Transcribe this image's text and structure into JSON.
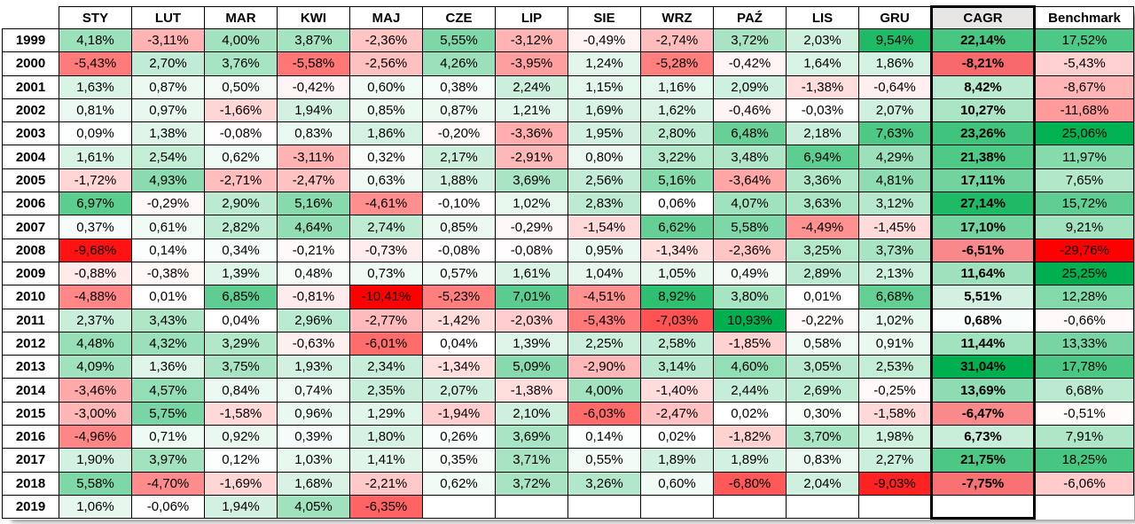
{
  "table_name": "monthly-returns-heatmap",
  "corner_label": "",
  "styles": {
    "cagr_header_bg": "#E7E6E4",
    "month_scale": {
      "min": -10.41,
      "max": 10.93,
      "neg": "#FF0000",
      "pos": "#00B050",
      "mid": "#FFFFFF"
    },
    "cagr_scale": {
      "min": -8.21,
      "max": 31.04,
      "neg": "#F8696B",
      "pos": "#00B050",
      "mid": "#FFFFFF"
    },
    "benchmark_scale": {
      "min": -29.76,
      "max": 25.25,
      "neg": "#FF0000",
      "pos": "#00B050",
      "mid": "#FFFFFF"
    }
  },
  "chart_data": {
    "type": "heatmap",
    "title": "",
    "number_format": "comma-decimal-percent",
    "month_columns": [
      "STY",
      "LUT",
      "MAR",
      "KWI",
      "MAJ",
      "CZE",
      "LIP",
      "SIE",
      "WRZ",
      "PAŹ",
      "LIS",
      "GRU"
    ],
    "summary_columns": [
      "CAGR",
      "Benchmark"
    ],
    "rows": [
      {
        "year": "1999",
        "values": [
          4.18,
          -3.11,
          4.0,
          3.87,
          -2.36,
          5.55,
          -3.12,
          -0.49,
          -2.74,
          3.72,
          2.03,
          9.54
        ],
        "cagr": 22.14,
        "benchmark": 17.52
      },
      {
        "year": "2000",
        "values": [
          -5.43,
          2.7,
          3.76,
          -5.58,
          -2.56,
          4.26,
          -3.95,
          1.24,
          -5.28,
          -0.42,
          1.64,
          1.86
        ],
        "cagr": -8.21,
        "benchmark": -5.43
      },
      {
        "year": "2001",
        "values": [
          1.63,
          0.87,
          0.5,
          -0.42,
          0.6,
          0.38,
          2.24,
          1.15,
          1.16,
          2.09,
          -1.38,
          -0.64
        ],
        "cagr": 8.42,
        "benchmark": -8.67
      },
      {
        "year": "2002",
        "values": [
          0.81,
          0.97,
          -1.66,
          1.94,
          0.85,
          0.87,
          1.21,
          1.69,
          1.62,
          -0.46,
          -0.03,
          2.07
        ],
        "cagr": 10.27,
        "benchmark": -11.68
      },
      {
        "year": "2003",
        "values": [
          0.09,
          1.38,
          -0.08,
          0.83,
          1.86,
          -0.2,
          -3.36,
          1.95,
          2.8,
          6.48,
          2.18,
          7.63
        ],
        "cagr": 23.26,
        "benchmark": 25.06
      },
      {
        "year": "2004",
        "values": [
          1.61,
          2.54,
          0.62,
          -3.11,
          0.32,
          2.17,
          -2.91,
          0.8,
          3.22,
          3.48,
          6.94,
          4.29
        ],
        "cagr": 21.38,
        "benchmark": 11.97
      },
      {
        "year": "2005",
        "values": [
          -1.72,
          4.93,
          -2.71,
          -2.47,
          0.63,
          1.88,
          3.69,
          2.56,
          5.16,
          -3.64,
          3.36,
          4.81
        ],
        "cagr": 17.11,
        "benchmark": 7.65
      },
      {
        "year": "2006",
        "values": [
          6.97,
          -0.29,
          2.9,
          5.16,
          -4.61,
          -0.1,
          1.02,
          2.83,
          0.06,
          4.07,
          3.63,
          3.12
        ],
        "cagr": 27.14,
        "benchmark": 15.72
      },
      {
        "year": "2007",
        "values": [
          0.37,
          0.61,
          2.82,
          4.64,
          2.74,
          0.85,
          -0.29,
          -1.54,
          6.62,
          5.58,
          -4.49,
          -1.45
        ],
        "cagr": 17.1,
        "benchmark": 9.21
      },
      {
        "year": "2008",
        "values": [
          -9.68,
          0.14,
          0.34,
          -0.21,
          -0.73,
          -0.08,
          -0.08,
          0.95,
          -1.34,
          -2.36,
          3.25,
          3.73
        ],
        "cagr": -6.51,
        "benchmark": -29.76
      },
      {
        "year": "2009",
        "values": [
          -0.88,
          -0.38,
          1.39,
          0.48,
          0.73,
          0.57,
          1.61,
          1.04,
          1.05,
          0.49,
          2.89,
          2.13
        ],
        "cagr": 11.64,
        "benchmark": 25.25
      },
      {
        "year": "2010",
        "values": [
          -4.88,
          0.01,
          6.85,
          -0.81,
          -10.41,
          -5.23,
          7.01,
          -4.51,
          8.92,
          3.8,
          0.01,
          6.68
        ],
        "cagr": 5.51,
        "benchmark": 12.28
      },
      {
        "year": "2011",
        "values": [
          2.37,
          3.43,
          0.04,
          2.96,
          -2.77,
          -1.42,
          -2.03,
          -5.43,
          -7.03,
          10.93,
          -0.22,
          1.02
        ],
        "cagr": 0.68,
        "benchmark": -0.66
      },
      {
        "year": "2012",
        "values": [
          4.48,
          4.32,
          3.29,
          -0.63,
          -6.01,
          0.04,
          1.39,
          2.25,
          2.58,
          -1.85,
          0.58,
          0.91
        ],
        "cagr": 11.44,
        "benchmark": 13.33
      },
      {
        "year": "2013",
        "values": [
          4.09,
          1.36,
          3.75,
          1.93,
          2.34,
          -1.34,
          5.09,
          -2.9,
          3.14,
          4.6,
          3.05,
          2.53
        ],
        "cagr": 31.04,
        "benchmark": 17.78
      },
      {
        "year": "2014",
        "values": [
          -3.46,
          4.57,
          0.84,
          0.74,
          2.35,
          2.07,
          -1.38,
          4.0,
          -1.4,
          2.44,
          2.69,
          -0.25
        ],
        "cagr": 13.69,
        "benchmark": 6.68
      },
      {
        "year": "2015",
        "values": [
          -3.0,
          5.75,
          -1.58,
          0.96,
          1.29,
          -1.94,
          2.1,
          -6.03,
          -2.47,
          0.02,
          0.3,
          -1.58
        ],
        "cagr": -6.47,
        "benchmark": -0.51
      },
      {
        "year": "2016",
        "values": [
          -4.96,
          0.71,
          0.92,
          0.39,
          1.8,
          0.26,
          3.69,
          0.14,
          0.02,
          -1.82,
          3.7,
          1.98
        ],
        "cagr": 6.73,
        "benchmark": 7.91
      },
      {
        "year": "2017",
        "values": [
          1.9,
          3.97,
          0.12,
          1.03,
          1.41,
          0.35,
          3.71,
          0.55,
          1.89,
          1.89,
          0.83,
          2.27
        ],
        "cagr": 21.75,
        "benchmark": 18.25
      },
      {
        "year": "2018",
        "values": [
          5.58,
          -4.7,
          -1.69,
          1.68,
          -2.21,
          0.62,
          3.72,
          3.26,
          0.6,
          -6.8,
          2.04,
          -9.03
        ],
        "cagr": -7.75,
        "benchmark": -6.06
      },
      {
        "year": "2019",
        "values": [
          1.06,
          -0.06,
          1.94,
          4.05,
          -6.35,
          null,
          null,
          null,
          null,
          null,
          null,
          null
        ],
        "cagr": null,
        "benchmark": null
      }
    ]
  }
}
